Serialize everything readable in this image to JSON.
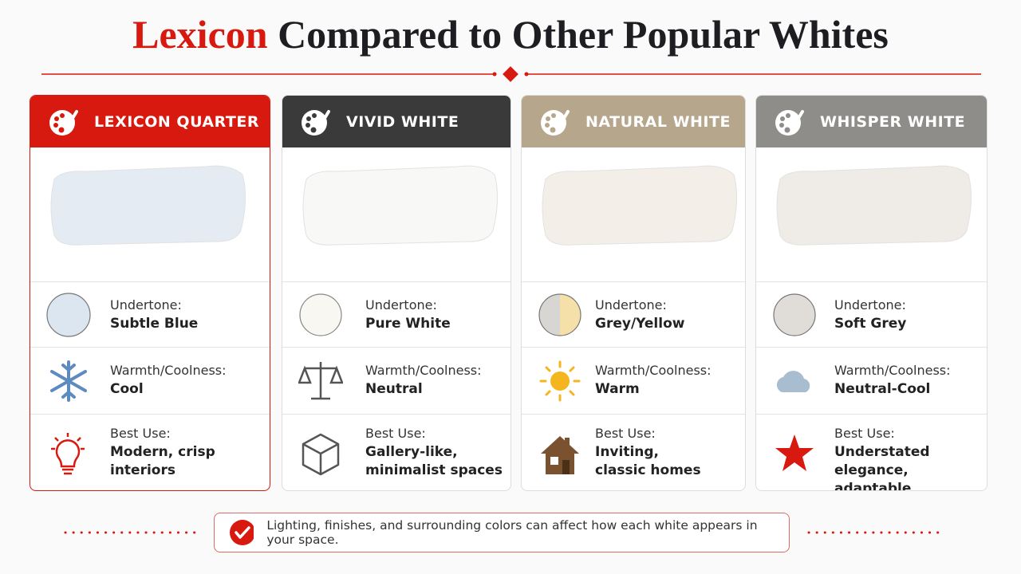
{
  "header": {
    "title_highlight": "Lexicon",
    "title_rest": "Compared to Other Popular Whites"
  },
  "cards": [
    {
      "name": "LEXICON QUARTER",
      "undertone": {
        "label": "Undertone:",
        "value": "Subtle Blue"
      },
      "warmth": {
        "label": "Warmth/Coolness:",
        "value": "Cool"
      },
      "best_use": {
        "label": "Best Use:",
        "value": [
          "Modern, crisp interiors"
        ]
      }
    },
    {
      "name": "VIVID WHITE",
      "undertone": {
        "label": "Undertone:",
        "value": "Pure White"
      },
      "warmth": {
        "label": "Warmth/Coolness:",
        "value": "Neutral"
      },
      "best_use": {
        "label": "Best Use:",
        "value": [
          "Gallery-like,",
          "minimalist spaces"
        ]
      }
    },
    {
      "name": "NATURAL WHITE",
      "undertone": {
        "label": "Undertone:",
        "value": "Grey/Yellow"
      },
      "warmth": {
        "label": "Warmth/Coolness:",
        "value": "Warm"
      },
      "best_use": {
        "label": "Best Use:",
        "value": [
          "Inviting,",
          "classic homes"
        ]
      }
    },
    {
      "name": "WHISPER WHITE",
      "undertone": {
        "label": "Undertone:",
        "value": "Soft Grey"
      },
      "warmth": {
        "label": "Warmth/Coolness:",
        "value": "Neutral-Cool"
      },
      "best_use": {
        "label": "Best Use:",
        "value": [
          "Understated elegance,",
          "adaptable"
        ]
      }
    }
  ],
  "footer": {
    "note": "Lighting, finishes, and surrounding colors can affect how each white appears in your space."
  }
}
